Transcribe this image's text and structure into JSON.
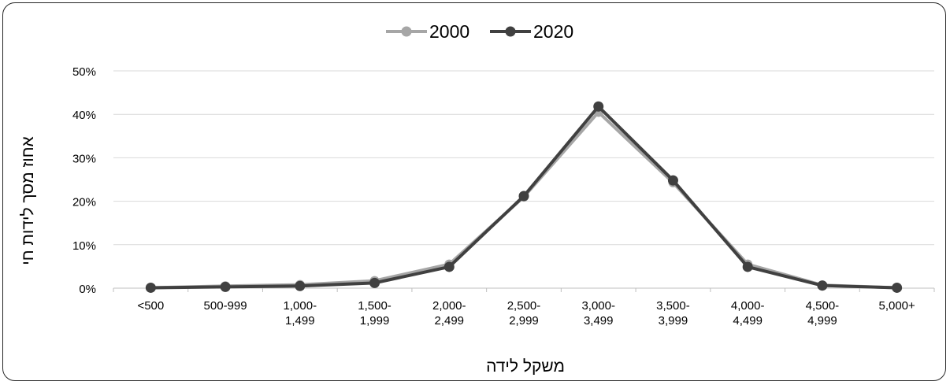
{
  "chart_data": {
    "type": "line",
    "title": "",
    "xlabel": "משקל לידה",
    "ylabel": "אחוז מסך לידות חי",
    "ylim": [
      0,
      0.5
    ],
    "yticks": [
      "0%",
      "10%",
      "20%",
      "30%",
      "40%",
      "50%"
    ],
    "categories": [
      "<500",
      "500-999",
      "1,000-\n1,499",
      "1,500-\n1,999",
      "2,000-\n2,499",
      "2,500-\n2,999",
      "3,000-\n3,499",
      "3,500-\n3,999",
      "4,000-\n4,499",
      "4,500-\n4,999",
      "5,000+"
    ],
    "grid": true,
    "legend_position": "top",
    "series": [
      {
        "name": "2000",
        "color": "#a6a6a6",
        "values": [
          0.001,
          0.005,
          0.008,
          0.017,
          0.055,
          0.21,
          0.405,
          0.243,
          0.055,
          0.007,
          0.001
        ]
      },
      {
        "name": "2020",
        "color": "#404040",
        "values": [
          0.001,
          0.003,
          0.005,
          0.012,
          0.049,
          0.212,
          0.418,
          0.248,
          0.049,
          0.006,
          0.001
        ]
      }
    ]
  }
}
